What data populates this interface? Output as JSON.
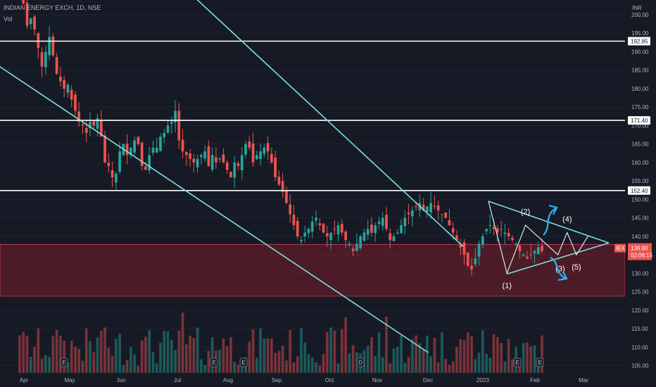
{
  "header": {
    "symbol": "INDIAN ENERGY EXCH, 1D, NSE",
    "volume_label": "Vol"
  },
  "currency": "INR",
  "colors": {
    "background": "#161a25",
    "up": "#26a69a",
    "down": "#ef5350",
    "trendline": "#7ee0dc",
    "level": "#ffffff",
    "zone": "#7a1e2b",
    "wave_arrow": "#29b6f6"
  },
  "chart_data": {
    "type": "candlestick",
    "y_ticks": [
      "200.00",
      "195.00",
      "190.00",
      "185.00",
      "180.00",
      "175.00",
      "170.00",
      "165.00",
      "160.00",
      "155.00",
      "150.00",
      "145.00",
      "140.00",
      "135.00",
      "130.00",
      "125.00",
      "120.00",
      "115.00",
      "110.00",
      "105.00"
    ],
    "x_ticks": [
      "Apr",
      "May",
      "Jun",
      "Jul",
      "Aug",
      "Sep",
      "Oct",
      "Nov",
      "Dec",
      "2023",
      "Feb",
      "Mar"
    ],
    "ylim": [
      103,
      204
    ],
    "xlim": [
      0,
      270
    ],
    "price_levels": [
      {
        "label": "192.85",
        "value": 192.85
      },
      {
        "label": "171.40",
        "value": 171.4
      },
      {
        "label": "152.40",
        "value": 152.4
      }
    ],
    "current_price": {
      "label": "136.80",
      "value": 136.8,
      "timer": "02:08:15",
      "ticker": "IEX"
    },
    "zone": {
      "top": 137.8,
      "bottom": 123.8
    },
    "trendlines": [
      {
        "x1": -5,
        "y1": 188,
        "x2": 185,
        "y2": 108.5
      },
      {
        "x1": 75,
        "y1": 210,
        "x2": 200,
        "y2": 137.3
      },
      {
        "x1": 211,
        "y1": 149.5,
        "x2": 263,
        "y2": 138.2
      },
      {
        "x1": 219,
        "y1": 129.8,
        "x2": 263,
        "y2": 138.2
      }
    ],
    "wave_path": [
      [
        211,
        149.5
      ],
      [
        219,
        130
      ],
      [
        227,
        143
      ],
      [
        241,
        135
      ],
      [
        245,
        141
      ],
      [
        249,
        135
      ],
      [
        254,
        140
      ]
    ],
    "wave_labels": [
      {
        "label": "(1)",
        "x": 219,
        "y": 126
      },
      {
        "label": "(2)",
        "x": 227,
        "y": 146
      },
      {
        "label": "(3)",
        "x": 242,
        "y": 130.5
      },
      {
        "label": "(4)",
        "x": 245,
        "y": 144
      },
      {
        "label": "(5)",
        "x": 249,
        "y": 131
      }
    ],
    "closes": [
      205,
      203,
      197,
      199,
      196,
      191,
      186,
      190,
      194,
      189,
      184,
      182,
      180,
      181,
      177,
      174,
      171,
      170,
      168,
      171,
      170,
      172,
      167,
      160,
      159,
      156,
      157,
      163,
      165,
      162,
      164,
      166,
      165,
      159,
      158,
      162,
      164,
      164,
      167,
      168,
      170,
      171,
      174,
      166,
      163,
      162,
      161,
      160,
      161,
      162,
      163,
      159,
      162,
      160,
      161,
      160,
      158,
      156,
      160,
      159,
      162,
      165,
      164,
      160,
      162,
      163,
      164,
      163,
      160,
      156,
      154,
      152,
      149,
      146,
      143,
      140,
      139,
      141,
      142,
      144,
      145,
      143,
      141,
      140,
      141,
      142,
      143,
      141,
      139,
      138,
      136,
      138,
      140,
      141,
      142,
      141,
      143,
      144,
      145,
      142,
      139,
      140,
      141,
      143,
      145,
      146,
      147,
      148,
      149,
      147,
      148,
      149,
      148,
      147,
      146,
      145,
      143,
      141,
      139,
      137,
      135,
      132,
      131,
      134,
      138,
      140,
      142,
      143,
      142,
      141,
      142,
      141,
      140,
      139,
      138,
      136,
      135,
      134,
      135,
      136,
      137,
      136
    ],
    "legend_icons": [
      "E",
      "E",
      "E",
      "D",
      "E",
      "E"
    ]
  }
}
